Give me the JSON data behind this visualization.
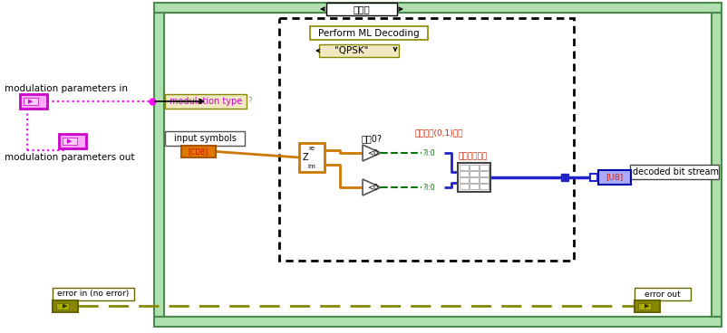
{
  "bg": "#ffffff",
  "green_light": "#a8e0a8",
  "green_dark": "#4a8a4a",
  "white": "#ffffff",
  "black": "#111111",
  "magenta": "#ff00ff",
  "magenta_dark": "#cc00cc",
  "magenta_light": "#ffaaff",
  "orange": "#cc7700",
  "blue": "#2222cc",
  "blue_light": "#aaaaff",
  "green_wire": "#007700",
  "olive": "#888800",
  "olive_dark": "#666600",
  "tan": "#f0e8c0",
  "gray_light": "#dddddd",
  "no_error_label": "无错误",
  "perform_ml_label": "Perform ML Decoding",
  "qpsk_label": "\"QPSK\"",
  "mod_params_in": "modulation parameters in",
  "mod_params_out": "modulation parameters out",
  "mod_type_label": "modulation type",
  "input_symbols_label": "input symbols",
  "decoded_bit_stream_label": "decoded bit stream",
  "error_in_label": "error in (no error)",
  "error_out_label": "error out",
  "xiao_yu_label": "小于0?",
  "bool_convert_label": "布尔値至(0,1)转换",
  "interleave_label": "交织一维数组"
}
